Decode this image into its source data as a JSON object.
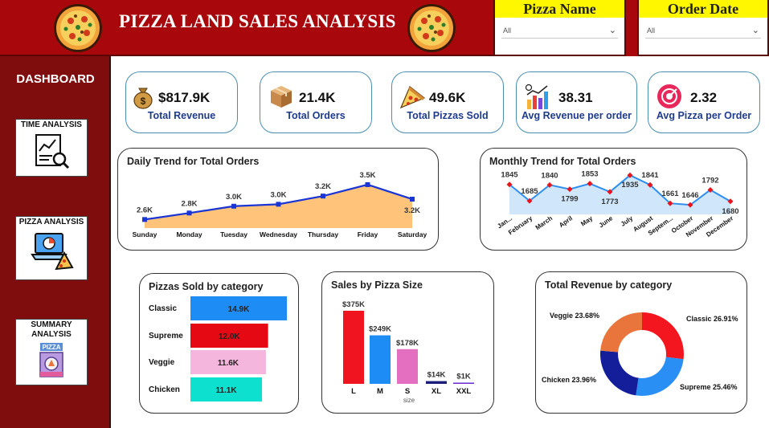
{
  "header": {
    "title": "PIZZA LAND SALES ANALYSIS",
    "logo_icon": "pizza-icon"
  },
  "slicers": [
    {
      "title": "Pizza Name",
      "value": "All"
    },
    {
      "title": "Order Date",
      "value": "All"
    }
  ],
  "sidebar": {
    "title": "DASHBOARD",
    "items": [
      {
        "label": "TIME ANALYSIS",
        "icon": "report-magnifier-icon"
      },
      {
        "label": "PIZZA ANALYSIS",
        "icon": "laptop-pizza-icon"
      },
      {
        "label": "SUMMARY ANALYSIS",
        "icon": "pizza-shop-icon",
        "badge": "PIZZA"
      }
    ]
  },
  "kpis": [
    {
      "value": "$817.9K",
      "label": "Total Revenue",
      "icon": "money-bag-icon"
    },
    {
      "value": "21.4K",
      "label": "Total Orders",
      "icon": "box-icon"
    },
    {
      "value": "49.6K",
      "label": "Total Pizzas Sold",
      "icon": "pizza-slice-icon"
    },
    {
      "value": "38.31",
      "label": "Avg Revenue per order",
      "icon": "bar-growth-icon"
    },
    {
      "value": "2.32",
      "label": "Avg Pizza per Order",
      "icon": "target-icon"
    }
  ],
  "daily": {
    "title": "Daily Trend for Total Orders",
    "chart_data": {
      "type": "area",
      "categories": [
        "Sunday",
        "Monday",
        "Tuesday",
        "Wednesday",
        "Thursday",
        "Friday",
        "Saturday"
      ],
      "values": [
        2624,
        2794,
        2973,
        3024,
        3239,
        3538,
        3158
      ],
      "labels": [
        "2.6K",
        "2.8K",
        "3.0K",
        "3.0K",
        "3.2K",
        "3.5K",
        "3.2K"
      ],
      "line_color": "#1a35d6",
      "fill_color": "#ffc47a"
    }
  },
  "monthly": {
    "title": "Monthly Trend for Total Orders",
    "chart_data": {
      "type": "area",
      "categories": [
        "Jan...",
        "February",
        "March",
        "April",
        "May",
        "June",
        "July",
        "August",
        "Septem...",
        "October",
        "November",
        "December"
      ],
      "values": [
        1845,
        1685,
        1840,
        1799,
        1853,
        1773,
        1935,
        1841,
        1661,
        1646,
        1792,
        1680
      ],
      "line_color": "#2d8ef0",
      "fill_color": "#cfe6fb",
      "marker_color": "#e8141c"
    }
  },
  "category": {
    "title": "Pizzas Sold by category",
    "chart_data": {
      "type": "bar",
      "categories": [
        "Classic",
        "Supreme",
        "Veggie",
        "Chicken"
      ],
      "values": [
        14888,
        11987,
        11649,
        11050
      ],
      "labels": [
        "14.9K",
        "12.0K",
        "11.6K",
        "11.1K"
      ],
      "colors": [
        "#1e8cf5",
        "#e50914",
        "#f4b6dc",
        "#0ee0d0"
      ]
    }
  },
  "size": {
    "title": "Sales by Pizza Size",
    "xlabel": "size",
    "chart_data": {
      "type": "bar",
      "categories": [
        "L",
        "M",
        "S",
        "XL",
        "XXL"
      ],
      "values": [
        375,
        249,
        178,
        14,
        1
      ],
      "labels": [
        "$375K",
        "$249K",
        "$178K",
        "$14K",
        "$1K"
      ],
      "colors": [
        "#f01420",
        "#1e8cf5",
        "#e46ec0",
        "#1a1e78",
        "#6a2ad0"
      ]
    }
  },
  "revenue": {
    "title": "Total Revenue by category",
    "chart_data": {
      "type": "pie",
      "categories": [
        "Classic",
        "Supreme",
        "Chicken",
        "Veggie"
      ],
      "values": [
        26.91,
        25.46,
        23.96,
        23.68
      ],
      "labels": [
        "Classic 26.91%",
        "Supreme 25.46%",
        "Chicken 23.96%",
        "Veggie 23.68%"
      ],
      "colors": [
        "#f4161e",
        "#2a8ff4",
        "#151e9a",
        "#e9743c"
      ]
    }
  }
}
